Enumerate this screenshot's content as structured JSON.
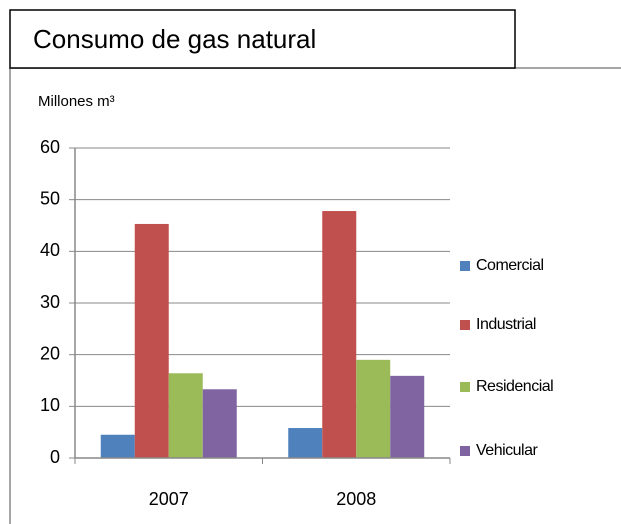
{
  "chart_data": {
    "type": "bar",
    "title": "Consumo de gas natural",
    "y_label": "Millones m³",
    "categories": [
      "2007",
      "2008"
    ],
    "series": [
      {
        "name": "Comercial",
        "color": "#4f81bd",
        "values": [
          4.5,
          5.8
        ]
      },
      {
        "name": "Industrial",
        "color": "#c0504d",
        "values": [
          45.3,
          47.8
        ]
      },
      {
        "name": "Residencial",
        "color": "#9bbb59",
        "values": [
          16.4,
          19.0
        ]
      },
      {
        "name": "Vehicular",
        "color": "#8064a2",
        "values": [
          13.3,
          15.9
        ]
      }
    ],
    "ylim": [
      0,
      60
    ],
    "yticks": [
      0,
      10,
      20,
      30,
      40,
      50,
      60
    ],
    "grid": true,
    "legend": "right"
  }
}
